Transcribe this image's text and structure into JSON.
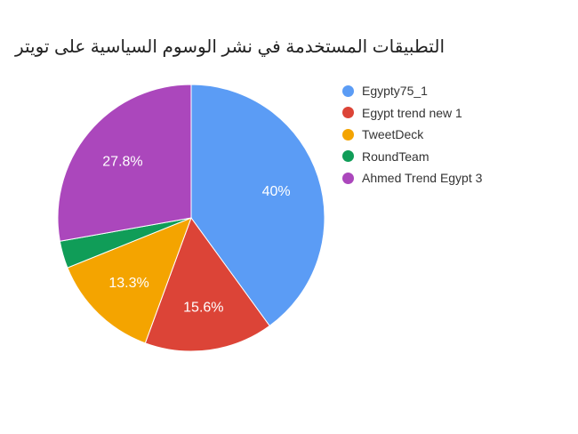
{
  "chart_data": {
    "type": "pie",
    "title": "التطبيقات المستخدمة في نشر الوسوم السياسية على تويتر",
    "legend_position": "right",
    "slices": [
      {
        "name": "Egypty75_1",
        "value": 40.0,
        "label": "40%",
        "color": "#5b9cf5"
      },
      {
        "name": "Egypt trend new 1",
        "value": 15.6,
        "label": "15.6%",
        "color": "#dc4437"
      },
      {
        "name": "TweetDeck",
        "value": 13.3,
        "label": "13.3%",
        "color": "#f4a400"
      },
      {
        "name": "RoundTeam",
        "value": 3.3,
        "label": "",
        "color": "#109d58"
      },
      {
        "name": "Ahmed Trend Egypt 3",
        "value": 27.8,
        "label": "27.8%",
        "color": "#ab47bc"
      }
    ]
  }
}
